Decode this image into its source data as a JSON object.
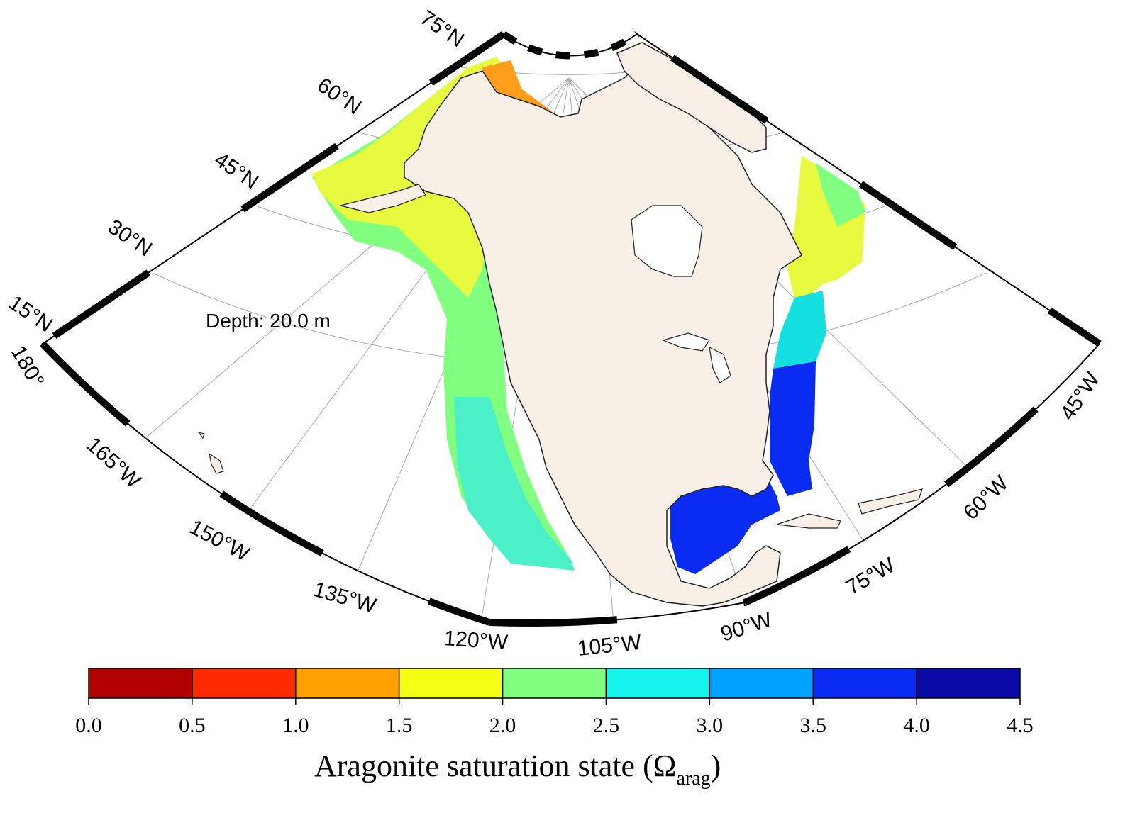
{
  "map": {
    "depth_label": "Depth: 20.0 m",
    "land_color": "#f8efe6",
    "inland_water_color": "#ffffff",
    "shelf_gray_color": "#b8b8b8",
    "lat_labels": [
      "15°N",
      "30°N",
      "45°N",
      "60°N",
      "75°N"
    ],
    "lon_labels": [
      "180°",
      "165°W",
      "150°W",
      "135°W",
      "120°W",
      "105°W",
      "90°W",
      "75°W",
      "60°W",
      "45°W"
    ]
  },
  "colorbar": {
    "title_main": "Aragonite saturation state (Ω",
    "title_sub": "arag",
    "title_end": ")",
    "tick_labels": [
      "0.0",
      "0.5",
      "1.0",
      "1.5",
      "2.0",
      "2.5",
      "3.0",
      "3.5",
      "4.0",
      "4.5"
    ],
    "bins": [
      {
        "min": 0.0,
        "max": 0.5,
        "color": "#b00000"
      },
      {
        "min": 0.5,
        "max": 1.0,
        "color": "#ff2a00"
      },
      {
        "min": 1.0,
        "max": 1.5,
        "color": "#ffa000"
      },
      {
        "min": 1.5,
        "max": 2.0,
        "color": "#f4ff14"
      },
      {
        "min": 2.0,
        "max": 2.5,
        "color": "#80ff80"
      },
      {
        "min": 2.5,
        "max": 3.0,
        "color": "#14f4ec"
      },
      {
        "min": 3.0,
        "max": 3.5,
        "color": "#00a2ff"
      },
      {
        "min": 3.5,
        "max": 4.0,
        "color": "#0a2cf2"
      },
      {
        "min": 4.0,
        "max": 4.5,
        "color": "#0a0aa6"
      }
    ]
  }
}
